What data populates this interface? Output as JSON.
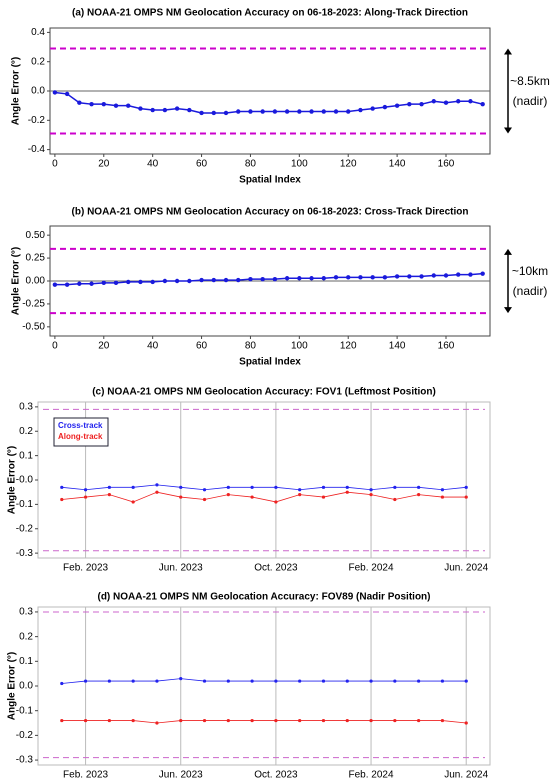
{
  "chart_data": [
    {
      "type": "line",
      "title": "(a) NOAA-21 OMPS NM Geolocation Accuracy on 06-18-2023: Along-Track Direction",
      "x_label": "Spatial Index",
      "y_label": "Angle Error (°)",
      "color": "#1a1adc",
      "x": [
        0,
        5,
        10,
        15,
        20,
        25,
        30,
        35,
        40,
        45,
        50,
        55,
        60,
        65,
        70,
        75,
        80,
        85,
        90,
        95,
        100,
        105,
        110,
        115,
        120,
        125,
        130,
        135,
        140,
        145,
        150,
        155,
        160,
        165,
        170,
        175
      ],
      "values": [
        -0.01,
        -0.02,
        -0.08,
        -0.09,
        -0.09,
        -0.1,
        -0.1,
        -0.12,
        -0.13,
        -0.13,
        -0.12,
        -0.13,
        -0.15,
        -0.15,
        -0.15,
        -0.14,
        -0.14,
        -0.14,
        -0.14,
        -0.14,
        -0.14,
        -0.14,
        -0.14,
        -0.14,
        -0.14,
        -0.13,
        -0.12,
        -0.11,
        -0.1,
        -0.09,
        -0.09,
        -0.07,
        -0.08,
        -0.07,
        -0.07,
        -0.09
      ],
      "xlim": [
        -2,
        178
      ],
      "xticks": [
        0,
        20,
        40,
        60,
        80,
        100,
        120,
        140,
        160
      ],
      "ylim": [
        -0.43,
        0.43
      ],
      "yticks": [
        0.4,
        0.2,
        {
          "value": 0,
          "label": "0.0"
        },
        -0.2,
        -0.4
      ],
      "reference_lines": [
        0.29,
        -0.29
      ],
      "reference_color": "#cc00cc",
      "annotation": [
        "~8.5km",
        "(nadir)"
      ]
    },
    {
      "type": "line",
      "title": "(b) NOAA-21 OMPS NM Geolocation Accuracy on 06-18-2023: Cross-Track Direction",
      "x_label": "Spatial Index",
      "y_label": "Angle Error (°)",
      "color": "#1a1adc",
      "x": [
        0,
        5,
        10,
        15,
        20,
        25,
        30,
        35,
        40,
        45,
        50,
        55,
        60,
        65,
        70,
        75,
        80,
        85,
        90,
        95,
        100,
        105,
        110,
        115,
        120,
        125,
        130,
        135,
        140,
        145,
        150,
        155,
        160,
        165,
        170,
        175
      ],
      "values": [
        -0.04,
        -0.04,
        -0.03,
        -0.03,
        -0.02,
        -0.02,
        -0.01,
        -0.01,
        -0.01,
        0,
        0,
        0,
        0.01,
        0.01,
        0.01,
        0.01,
        0.02,
        0.02,
        0.02,
        0.03,
        0.03,
        0.03,
        0.03,
        0.04,
        0.04,
        0.04,
        0.04,
        0.04,
        0.05,
        0.05,
        0.05,
        0.06,
        0.06,
        0.07,
        0.07,
        0.08
      ],
      "xlim": [
        -2,
        178
      ],
      "xticks": [
        0,
        20,
        40,
        60,
        80,
        100,
        120,
        140,
        160
      ],
      "ylim": [
        -0.6,
        0.6
      ],
      "yticks": [
        {
          "value": 0.5,
          "label": "0.50"
        },
        0.25,
        {
          "value": 0,
          "label": "0.00"
        },
        -0.25,
        {
          "value": -0.5,
          "label": "-0.50"
        }
      ],
      "reference_lines": [
        0.35,
        -0.35
      ],
      "reference_color": "#cc00cc",
      "annotation": [
        "~10km",
        "(nadir)"
      ]
    },
    {
      "type": "time",
      "title": "(c) NOAA-21 OMPS NM Geolocation Accuracy: FOV1 (Leftmost Position)",
      "y_label": "Angle Error (°)",
      "grid": true,
      "x": [
        "2023-01",
        "2023-02",
        "2023-03",
        "2023-04",
        "2023-05",
        "2023-06",
        "2023-07",
        "2023-08",
        "2023-09",
        "2023-10",
        "2023-11",
        "2023-12",
        "2024-01",
        "2024-02",
        "2024-03",
        "2024-04",
        "2024-05",
        "2024-06"
      ],
      "series": [
        {
          "name": "Cross-track",
          "color": "#2222ee",
          "values": [
            -0.03,
            -0.04,
            -0.03,
            -0.03,
            -0.02,
            -0.03,
            -0.04,
            -0.03,
            -0.03,
            -0.03,
            -0.04,
            -0.03,
            -0.03,
            -0.04,
            -0.03,
            -0.03,
            -0.04,
            -0.03
          ]
        },
        {
          "name": "Along-track",
          "color": "#ee2222",
          "values": [
            -0.08,
            -0.07,
            -0.06,
            -0.09,
            -0.05,
            -0.07,
            -0.08,
            -0.06,
            -0.07,
            -0.09,
            -0.06,
            -0.07,
            -0.05,
            -0.06,
            -0.08,
            -0.06,
            -0.07,
            -0.07
          ]
        }
      ],
      "xlim": [
        "2022-12",
        "2024-07"
      ],
      "xticks": [
        {
          "value": "2023-02",
          "label": "Feb. 2023"
        },
        {
          "value": "2023-06",
          "label": "Jun. 2023"
        },
        {
          "value": "2023-10",
          "label": "Oct. 2023"
        },
        {
          "value": "2024-02",
          "label": "Feb. 2024"
        },
        {
          "value": "2024-06",
          "label": "Jun. 2024"
        }
      ],
      "ylim": [
        -0.32,
        0.32
      ],
      "yticks": [
        0.3,
        0.2,
        0.1,
        {
          "value": 0,
          "label": "-0.0"
        },
        -0.1,
        -0.2,
        -0.3
      ],
      "reference_lines": [
        0.29,
        -0.29
      ],
      "reference_color": "#cc66cc"
    },
    {
      "type": "time",
      "title": "(d) NOAA-21 OMPS NM Geolocation Accuracy: FOV89 (Nadir Position)",
      "y_label": "Angle Error (°)",
      "grid": true,
      "x": [
        "2023-01",
        "2023-02",
        "2023-03",
        "2023-04",
        "2023-05",
        "2023-06",
        "2023-07",
        "2023-08",
        "2023-09",
        "2023-10",
        "2023-11",
        "2023-12",
        "2024-01",
        "2024-02",
        "2024-03",
        "2024-04",
        "2024-05",
        "2024-06"
      ],
      "series": [
        {
          "color": "#2222ee",
          "values": [
            0.01,
            0.02,
            0.02,
            0.02,
            0.02,
            0.03,
            0.02,
            0.02,
            0.02,
            0.02,
            0.02,
            0.02,
            0.02,
            0.02,
            0.02,
            0.02,
            0.02,
            0.02
          ]
        },
        {
          "color": "#ee2222",
          "values": [
            -0.14,
            -0.14,
            -0.14,
            -0.14,
            -0.15,
            -0.14,
            -0.14,
            -0.14,
            -0.14,
            -0.14,
            -0.14,
            -0.14,
            -0.14,
            -0.14,
            -0.14,
            -0.14,
            -0.14,
            -0.15
          ]
        }
      ],
      "xlim": [
        "2022-12",
        "2024-07"
      ],
      "xticks": [
        {
          "value": "2023-02",
          "label": "Feb. 2023"
        },
        {
          "value": "2023-06",
          "label": "Jun. 2023"
        },
        {
          "value": "2023-10",
          "label": "Oct. 2023"
        },
        {
          "value": "2024-02",
          "label": "Feb. 2024"
        },
        {
          "value": "2024-06",
          "label": "Jun. 2024"
        }
      ],
      "ylim": [
        -0.32,
        0.32
      ],
      "yticks": [
        0.3,
        0.2,
        0.1,
        {
          "value": 0,
          "label": "0.0"
        },
        -0.1,
        -0.2,
        -0.3
      ],
      "reference_lines": [
        0.3,
        -0.29
      ],
      "reference_color": "#cc66cc"
    }
  ]
}
